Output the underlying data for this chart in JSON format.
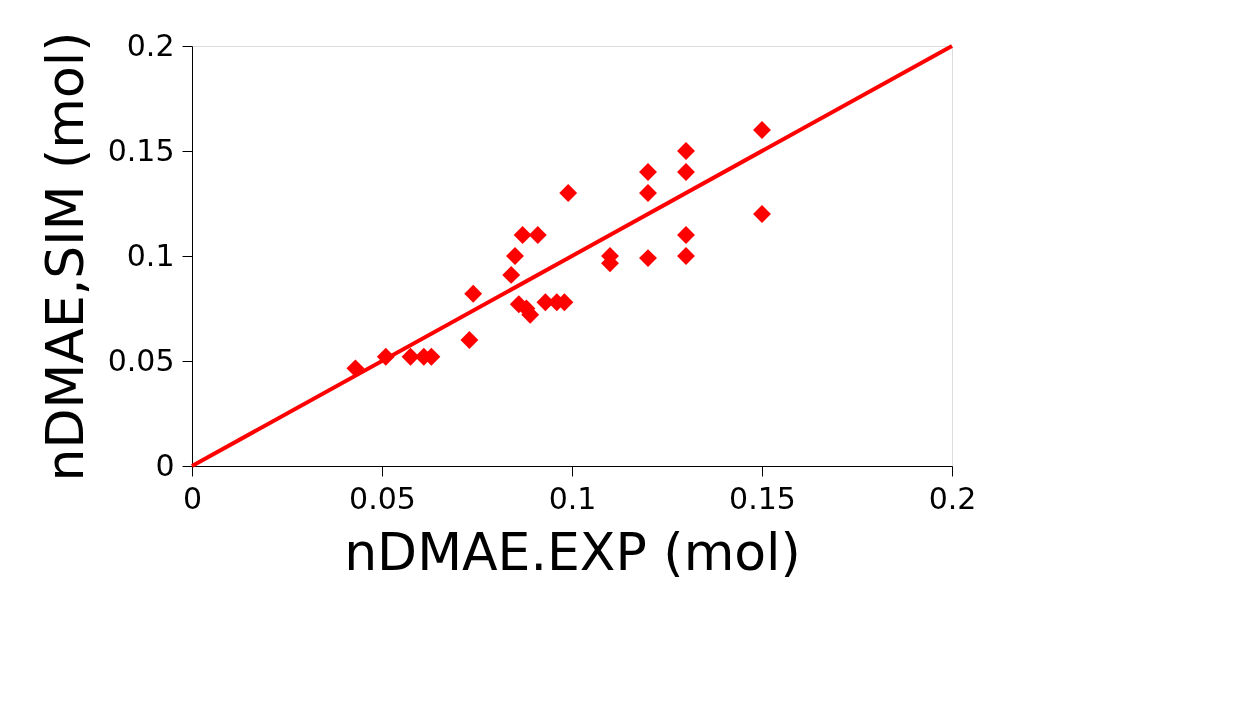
{
  "chart_data": {
    "type": "scatter",
    "xlabel": "nDMAE.EXP (mol)",
    "ylabel": "nDMAE,SIM (mol)",
    "xlim": [
      0,
      0.2
    ],
    "ylim": [
      0,
      0.2
    ],
    "xticks": [
      0,
      0.05,
      0.1,
      0.15,
      0.2
    ],
    "yticks": [
      0,
      0.05,
      0.1,
      0.15,
      0.2
    ],
    "grid": false,
    "marker": "diamond",
    "series": [
      {
        "color": "#ff0000",
        "x": [
          0.043,
          0.051,
          0.0575,
          0.061,
          0.063,
          0.073,
          0.074,
          0.084,
          0.085,
          0.086,
          0.087,
          0.088,
          0.089,
          0.091,
          0.093,
          0.096,
          0.098,
          0.099,
          0.11,
          0.11,
          0.12,
          0.12,
          0.12,
          0.13,
          0.13,
          0.13,
          0.13,
          0.15,
          0.15
        ],
        "values": [
          0.0465,
          0.052,
          0.052,
          0.052,
          0.052,
          0.06,
          0.082,
          0.091,
          0.1,
          0.077,
          0.11,
          0.075,
          0.072,
          0.11,
          0.078,
          0.078,
          0.078,
          0.13,
          0.1,
          0.0965,
          0.14,
          0.13,
          0.099,
          0.15,
          0.14,
          0.11,
          0.1,
          0.16,
          0.12
        ]
      },
      {
        "type": "line",
        "color": "#ff0000",
        "marker": "none",
        "x": [
          0,
          0.2
        ],
        "values": [
          0,
          0.2
        ]
      }
    ]
  }
}
